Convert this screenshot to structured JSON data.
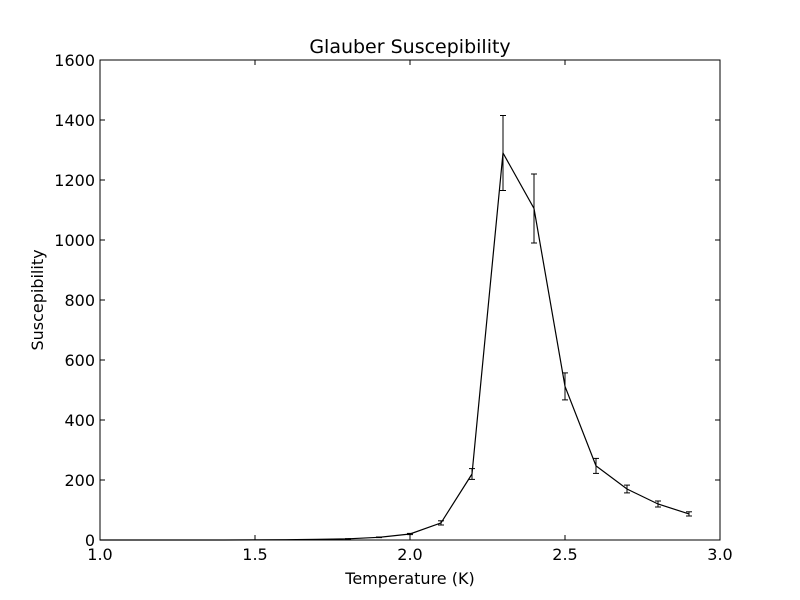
{
  "chart_data": {
    "type": "line",
    "title": "Glauber Suscepibility",
    "xlabel": "Temperature (K)",
    "ylabel": "Suscepibility",
    "xlim": [
      1.0,
      3.0
    ],
    "ylim": [
      0,
      1600
    ],
    "xticks": [
      "1.0",
      "1.5",
      "2.0",
      "2.5",
      "3.0"
    ],
    "yticks": [
      "0",
      "200",
      "400",
      "600",
      "800",
      "1000",
      "1200",
      "1400",
      "1600"
    ],
    "grid": false,
    "series": [
      {
        "name": "Susceptibility",
        "color": "#000000",
        "x": [
          1.0,
          1.1,
          1.2,
          1.3,
          1.4,
          1.5,
          1.6,
          1.7,
          1.8,
          1.9,
          2.0,
          2.1,
          2.2,
          2.3,
          2.4,
          2.5,
          2.6,
          2.7,
          2.8,
          2.9
        ],
        "y": [
          0,
          0,
          0,
          0,
          0,
          0.5,
          1,
          2,
          4,
          9,
          20,
          57,
          220,
          1290,
          1105,
          512,
          247,
          170,
          120,
          87
        ],
        "yerr": [
          0,
          0,
          0,
          0,
          0,
          0,
          0,
          0,
          0.5,
          1,
          2,
          7,
          18,
          125,
          115,
          45,
          25,
          13,
          10,
          7
        ]
      }
    ]
  }
}
